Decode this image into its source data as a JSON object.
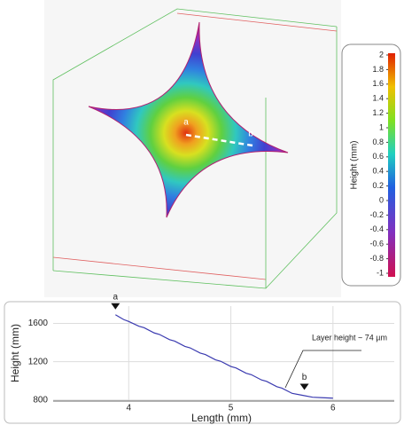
{
  "chart_data": [
    {
      "type": "heightmap",
      "point_labels": [
        "a",
        "b"
      ],
      "colorbar_label": "Height (mm)",
      "ylim": [
        -1,
        2
      ],
      "yticks": [
        2,
        1.8,
        1.6,
        1.4,
        1.2,
        1,
        0.8,
        0.6,
        0.4,
        0.2,
        0,
        -0.2,
        -0.4,
        -0.6,
        -0.8,
        -1
      ]
    },
    {
      "type": "line",
      "xlabel": "Length (mm)",
      "ylabel": "Height (mm)",
      "annotation": "Layer height ~ 74 µm",
      "markers": [
        {
          "label": "a",
          "x": 3.87
        },
        {
          "label": "b",
          "x": 5.72
        }
      ],
      "xlim": [
        3.26,
        6.6
      ],
      "ylim": [
        790,
        1780
      ],
      "xticks": [
        4,
        5,
        6
      ],
      "yticks": [
        800,
        1200,
        1600
      ],
      "grid": true,
      "series": [
        {
          "color": "#3b3bb0",
          "x": [
            3.87,
            3.95,
            4.0,
            4.1,
            4.15,
            4.25,
            4.3,
            4.4,
            4.45,
            4.55,
            4.6,
            4.7,
            4.75,
            4.85,
            4.9,
            5.0,
            5.05,
            5.15,
            5.2,
            5.3,
            5.35,
            5.45,
            5.5,
            5.6,
            5.7,
            5.8,
            5.9,
            6.0
          ],
          "values": [
            1690,
            1640,
            1620,
            1570,
            1555,
            1500,
            1485,
            1430,
            1415,
            1360,
            1345,
            1290,
            1275,
            1220,
            1205,
            1150,
            1135,
            1080,
            1065,
            1010,
            995,
            940,
            925,
            870,
            850,
            830,
            825,
            820
          ]
        }
      ]
    }
  ]
}
